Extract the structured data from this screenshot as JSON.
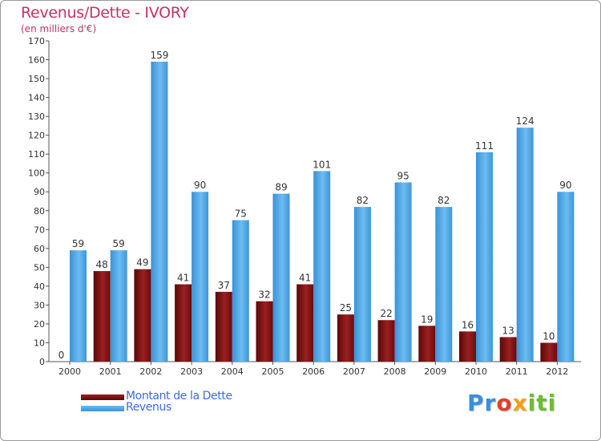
{
  "title": "Revenus/Dette - IVORY",
  "subtitle": "(en milliers d'€)",
  "logo": {
    "p": "Pr",
    "o": "o",
    "x": "x",
    "i": "iti"
  },
  "colors": {
    "debt": "#7a1010",
    "revenue": "#4ea7e8",
    "axis_text": "#333333",
    "title": "#c33365",
    "legend_text": "#3d6ae0"
  },
  "legend": [
    {
      "label": "Montant de la Dette",
      "color": "#7a1010"
    },
    {
      "label": "Revenus",
      "color": "#4ea7e8"
    }
  ],
  "chart_data": {
    "type": "bar",
    "title": "Revenus/Dette - IVORY",
    "ylabel": "(en milliers d'€)",
    "xlabel": "",
    "ylim": [
      0,
      170
    ],
    "ytick_step": 10,
    "categories": [
      "2000",
      "2001",
      "2002",
      "2003",
      "2004",
      "2005",
      "2006",
      "2007",
      "2008",
      "2009",
      "2010",
      "2011",
      "2012"
    ],
    "series": [
      {
        "name": "Montant de la Dette",
        "values": [
          0,
          48,
          49,
          41,
          37,
          32,
          41,
          25,
          22,
          19,
          16,
          13,
          10
        ]
      },
      {
        "name": "Revenus",
        "values": [
          59,
          59,
          159,
          90,
          75,
          89,
          101,
          82,
          95,
          82,
          111,
          124,
          90
        ]
      }
    ],
    "grid": false,
    "legend_position": "bottom-left"
  }
}
